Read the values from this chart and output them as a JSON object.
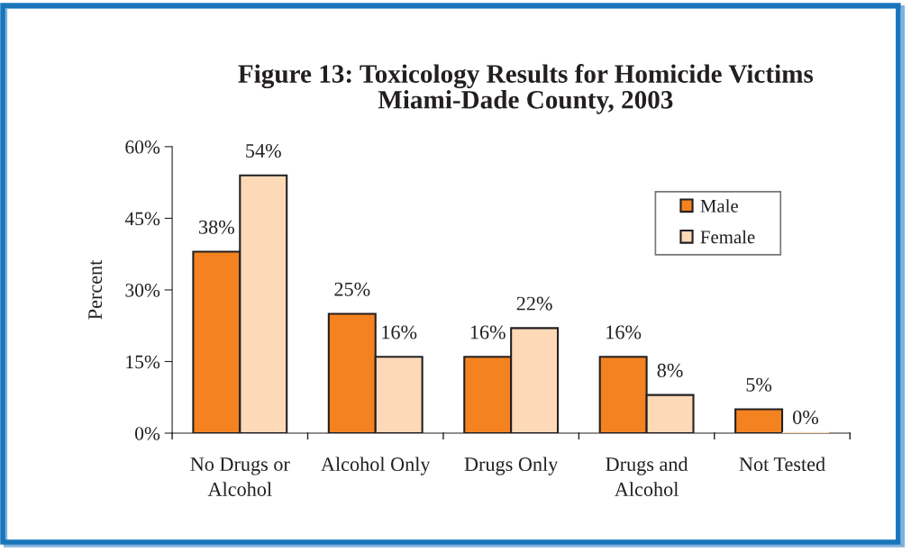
{
  "chart_data": {
    "type": "bar",
    "title": "Figure 13: Toxicology Results for Homicide Victims\nMiami-Dade County, 2003",
    "ylabel": "Percent",
    "categories": [
      "No Drugs or\nAlcohol",
      "Alcohol Only",
      "Drugs Only",
      "Drugs and\nAlcohol",
      "Not Tested"
    ],
    "series": [
      {
        "name": "Male",
        "color": "#f58220",
        "values": [
          38,
          25,
          16,
          16,
          5
        ],
        "value_labels": [
          "38%",
          "25%",
          "16%",
          "16%",
          "5%"
        ]
      },
      {
        "name": "Female",
        "color": "#fdd9b8",
        "values": [
          54,
          16,
          22,
          8,
          0
        ],
        "value_labels": [
          "54%",
          "16%",
          "22%",
          "8%",
          "0%"
        ]
      }
    ],
    "ylim": [
      0,
      60
    ],
    "yticks": [
      {
        "value": 0,
        "label": "0%"
      },
      {
        "value": 15,
        "label": "15%"
      },
      {
        "value": 30,
        "label": "30%"
      },
      {
        "value": 45,
        "label": "45%"
      },
      {
        "value": 60,
        "label": "60%"
      }
    ],
    "grid": false,
    "legend": "top right"
  }
}
